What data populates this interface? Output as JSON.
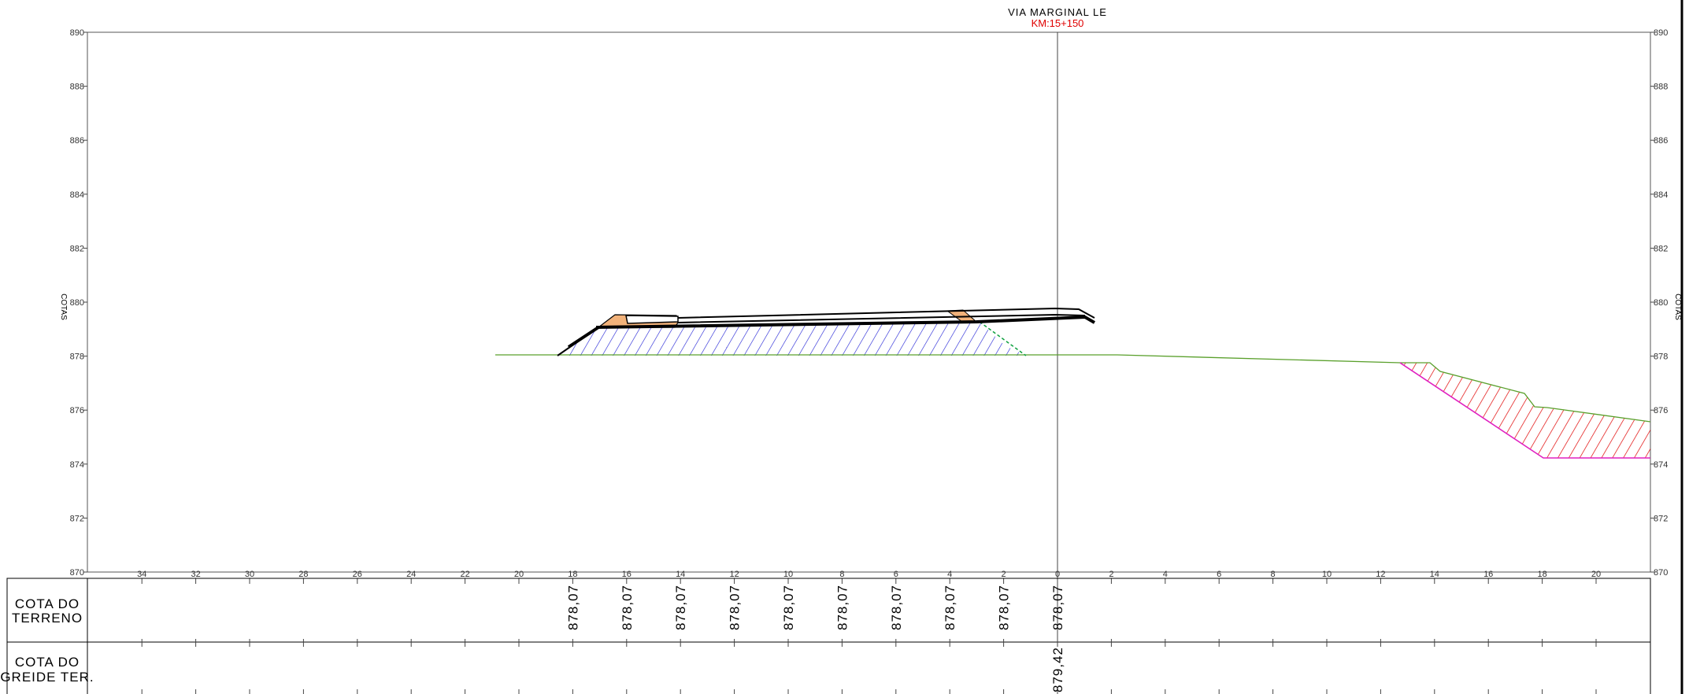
{
  "header": {
    "title": "VIA MARGINAL LE",
    "station": "KM:15+150",
    "station_color": "#e00000"
  },
  "y_axis": {
    "label_left": "COTAS",
    "label_right": "COTAS",
    "ticks": [
      890,
      888,
      886,
      884,
      882,
      880,
      878,
      876,
      874,
      872,
      870
    ],
    "range": [
      870,
      890
    ]
  },
  "x_axis": {
    "offset_labels_left": [
      "34",
      "32",
      "30",
      "28",
      "26",
      "24",
      "22",
      "20",
      "18",
      "16",
      "14",
      "12",
      "10",
      "8",
      "6",
      "4",
      "2",
      "0"
    ],
    "offset_labels_right": [
      "2",
      "4",
      "6",
      "8",
      "10",
      "12",
      "14",
      "16",
      "18",
      "20"
    ],
    "range": [
      -36,
      22
    ]
  },
  "table": {
    "row1_label_line1": "COTA DO",
    "row1_label_line2": "TERRENO",
    "row2_label_line1": "COTA DO",
    "row2_label_line2": "GREIDE TER.",
    "terreno_values": [
      "878,07",
      "878,07",
      "878,07",
      "878,07",
      "878,07",
      "878,07",
      "878,07",
      "878,07",
      "878,07",
      "878,07"
    ],
    "greide_value": "879,42"
  },
  "chart_data": {
    "type": "line",
    "title": "VIA MARGINAL LE",
    "subtitle": "KM:15+150",
    "xlabel": "",
    "ylabel": "COTAS",
    "xlim": [
      -36,
      22
    ],
    "ylim": [
      870,
      890
    ],
    "series": [
      {
        "x": [
          -20.8,
          -0.8,
          2.3,
          12.7,
          13.8,
          14.2,
          17.6,
          18.0,
          19.2,
          22
        ],
        "y": [
          878.07,
          878.07,
          878.07,
          877.75,
          877.7,
          877.4,
          876.6,
          876.15,
          876.05,
          875.55
        ]
      },
      {
        "x": [
          -18.5,
          -17.0,
          -3.0,
          0.3,
          1.4
        ],
        "y": [
          878.07,
          879.1,
          879.4,
          879.7,
          879.5
        ]
      },
      {
        "x": [
          12.7,
          18.0,
          22
        ],
        "y": [
          877.75,
          874.3,
          874.3
        ]
      }
    ],
    "annotations": [
      "878,07",
      "879,42"
    ],
    "grid": false,
    "fill_colors": {
      "aterro": "#1a1ad4",
      "corte": "#e00000",
      "pavimento": "#f2b27a"
    }
  }
}
